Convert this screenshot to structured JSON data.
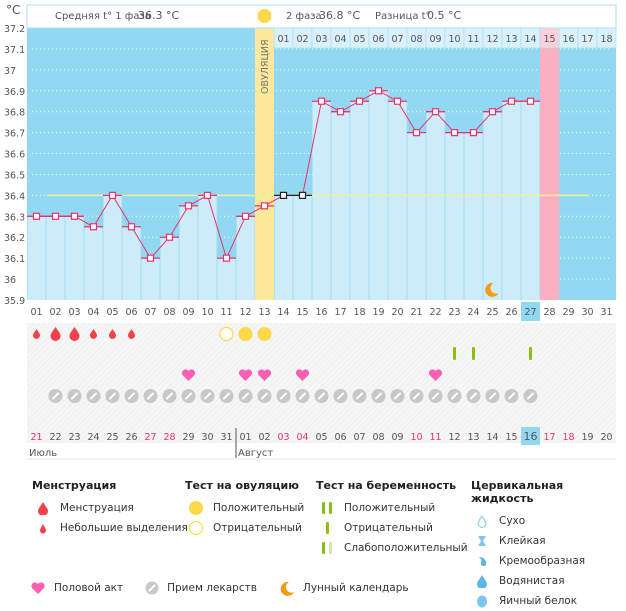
{
  "header": {
    "unit_label": "°C",
    "phase1_label": "Средняя t° 1 фаза",
    "phase1_value": "36.3 °C",
    "phase2_label": "2 фаза",
    "phase2_value": "36.8 °C",
    "diff_label": "Разница t°",
    "diff_value": "0.5 °C",
    "ovulation_label": "ОВУЛЯЦИЯ"
  },
  "colors": {
    "sky": "#93d8f2",
    "bar": "#ccecfa",
    "line": "#e8336b",
    "ovulation": "#fbe89a",
    "period_expected": "#fbb0c2",
    "coverline": "#f3ee9a",
    "blood": "#f2414b",
    "ovu_positive": "#fdd94a",
    "heart": "#fb5fb4",
    "pill": "#c8c8c8",
    "preg_test": "#8dbf12",
    "moon": "#f39c12",
    "today": "#93d8f2",
    "weekend": "#e8336b"
  },
  "chart_data": {
    "type": "line",
    "title": "",
    "ylabel": "°C",
    "ylim": [
      35.9,
      37.2
    ],
    "yticks": [
      "37.2",
      "37.1",
      "37",
      "36.9",
      "36.8",
      "36.7",
      "36.6",
      "36.5",
      "36.4",
      "36.3",
      "36.2",
      "36.1",
      "36",
      "35.9"
    ],
    "cycle_days": [
      "01",
      "02",
      "03",
      "04",
      "05",
      "06",
      "07",
      "08",
      "09",
      "10",
      "11",
      "12",
      "13",
      "14",
      "15",
      "16",
      "17",
      "18",
      "19",
      "20",
      "21",
      "22",
      "23",
      "24",
      "25",
      "26",
      "27",
      "28",
      "29",
      "30",
      "31"
    ],
    "temperatures": [
      36.3,
      36.3,
      36.3,
      36.25,
      36.4,
      36.25,
      36.1,
      36.2,
      36.35,
      36.4,
      36.1,
      36.3,
      36.35,
      36.4,
      36.4,
      36.85,
      36.8,
      36.85,
      36.9,
      36.85,
      36.7,
      36.8,
      36.7,
      36.7,
      36.8,
      36.85,
      36.85
    ],
    "black_marker_days": [
      14,
      15
    ],
    "coverline": 36.4,
    "ovulation_day": 13,
    "expected_period_day": 28,
    "today_cycle_day": 27,
    "luteal_days": [
      "01",
      "02",
      "03",
      "04",
      "05",
      "06",
      "07",
      "08",
      "09",
      "10",
      "11",
      "12",
      "13",
      "14",
      "15",
      "16",
      "17",
      "18"
    ],
    "luteal_highlight_day": "15",
    "calendar_dates": [
      "21",
      "22",
      "23",
      "24",
      "25",
      "26",
      "27",
      "28",
      "29",
      "30",
      "31",
      "01",
      "02",
      "03",
      "04",
      "05",
      "06",
      "07",
      "08",
      "09",
      "10",
      "11",
      "12",
      "13",
      "14",
      "15",
      "16",
      "17",
      "18",
      "19",
      "20"
    ],
    "weekend_dates_idx": [
      0,
      6,
      7,
      13,
      14,
      20,
      21,
      27,
      28
    ],
    "months": [
      {
        "label": "Июль",
        "start": 0
      },
      {
        "label": "Август",
        "start": 11
      }
    ],
    "menstruation": [
      {
        "day": 1,
        "type": "spotting"
      },
      {
        "day": 2,
        "type": "heavy"
      },
      {
        "day": 3,
        "type": "heavy"
      },
      {
        "day": 4,
        "type": "spotting"
      },
      {
        "day": 5,
        "type": "spotting"
      },
      {
        "day": 6,
        "type": "spotting"
      }
    ],
    "ovulation_tests": [
      {
        "day": 11,
        "result": "negative"
      },
      {
        "day": 12,
        "result": "positive"
      },
      {
        "day": 13,
        "result": "positive"
      }
    ],
    "pregnancy_tests": [
      {
        "day": 23,
        "result": "negative"
      },
      {
        "day": 24,
        "result": "negative"
      },
      {
        "day": 27,
        "result": "negative"
      }
    ],
    "intercourse_days": [
      9,
      12,
      13,
      15,
      22
    ],
    "medication_days": [
      2,
      3,
      4,
      5,
      6,
      7,
      8,
      9,
      10,
      11,
      12,
      13,
      14,
      15,
      16,
      17,
      18,
      19,
      20,
      21,
      22,
      23,
      24,
      25,
      26,
      27
    ],
    "moon_days": [
      25
    ]
  },
  "legend": {
    "menstruation": {
      "title": "Менструация",
      "items": [
        "Менструация",
        "Небольшие выделения"
      ]
    },
    "ovulation_test": {
      "title": "Тест на овуляцию",
      "items": [
        "Положительный",
        "Отрицательный"
      ]
    },
    "pregnancy_test": {
      "title": "Тест на беременность",
      "items": [
        "Положительный",
        "Отрицательный",
        "Слабоположительный"
      ]
    },
    "cervical_fluid": {
      "title": "Цервикальная жидкость",
      "items": [
        "Сухо",
        "Клейкая",
        "Кремообразная",
        "Водянистая",
        "Яичный белок"
      ]
    },
    "bottom": [
      "Половой акт",
      "Прием лекарств",
      "Лунный календарь"
    ]
  }
}
